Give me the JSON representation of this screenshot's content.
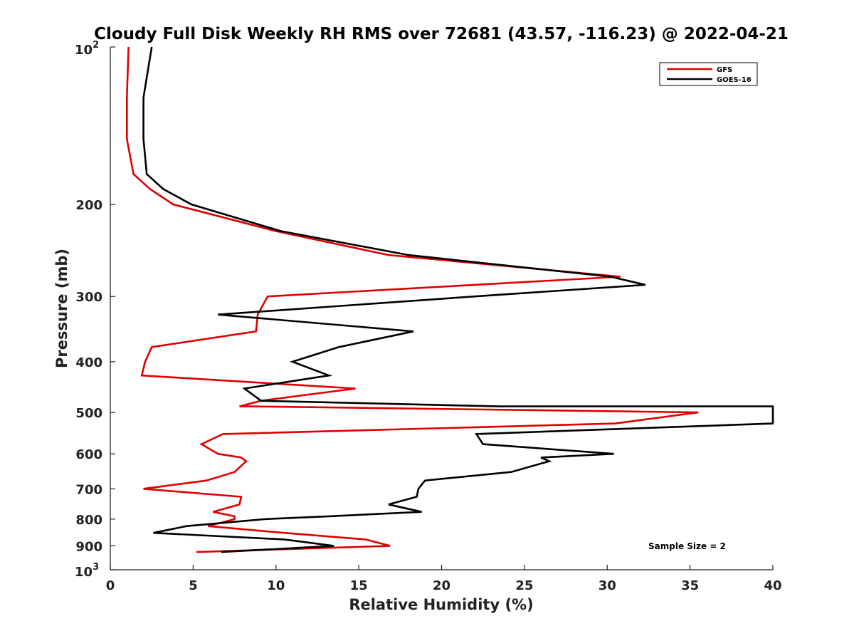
{
  "chart_data": {
    "type": "line",
    "title": "Cloudy Full Disk Weekly RH RMS over 72681 (43.57, -116.23) @ 2022-04-21",
    "xlabel": "Relative Humidity (%)",
    "ylabel": "Pressure (mb)",
    "xlim": [
      0,
      40
    ],
    "ylim": [
      100,
      1000
    ],
    "yscale": "log",
    "y_reversed": true,
    "grid": false,
    "legend_position": "top-right",
    "x_ticks": [
      "0",
      "5",
      "10",
      "15",
      "20",
      "25",
      "30",
      "35",
      "40"
    ],
    "x_tick_values": [
      0,
      5,
      10,
      15,
      20,
      25,
      30,
      35,
      40
    ],
    "y_ticks": [
      "200",
      "300",
      "400",
      "500",
      "600",
      "700",
      "800",
      "900"
    ],
    "y_tick_values": [
      200,
      300,
      400,
      500,
      600,
      700,
      800,
      900
    ],
    "y_tick_top": {
      "base": "10",
      "exp": "2"
    },
    "y_tick_bottom": {
      "base": "10",
      "exp": "3"
    },
    "annotation": "Sample Size = 2",
    "series": [
      {
        "name": "GFS",
        "color": "#e00000",
        "points": [
          [
            1.1,
            100
          ],
          [
            1.0,
            125
          ],
          [
            1.0,
            150
          ],
          [
            1.4,
            175
          ],
          [
            2.4,
            187
          ],
          [
            3.8,
            200
          ],
          [
            10.0,
            225
          ],
          [
            16.8,
            250
          ],
          [
            30.8,
            275
          ],
          [
            22.0,
            285
          ],
          [
            9.5,
            300
          ],
          [
            8.9,
            325
          ],
          [
            8.8,
            350
          ],
          [
            2.5,
            375
          ],
          [
            2.1,
            400
          ],
          [
            1.9,
            425
          ],
          [
            14.8,
            450
          ],
          [
            9.1,
            475
          ],
          [
            7.8,
            487
          ],
          [
            8.5,
            487
          ],
          [
            35.5,
            500
          ],
          [
            30.5,
            525
          ],
          [
            6.8,
            550
          ],
          [
            5.5,
            575
          ],
          [
            6.5,
            600
          ],
          [
            7.9,
            610
          ],
          [
            8.2,
            620
          ],
          [
            7.5,
            650
          ],
          [
            5.8,
            675
          ],
          [
            2.0,
            700
          ],
          [
            7.9,
            725
          ],
          [
            7.8,
            750
          ],
          [
            6.2,
            775
          ],
          [
            7.5,
            790
          ],
          [
            7.5,
            800
          ],
          [
            5.9,
            825
          ],
          [
            10.5,
            850
          ],
          [
            15.4,
            875
          ],
          [
            16.9,
            900
          ],
          [
            5.2,
            925
          ]
        ]
      },
      {
        "name": "GOES-16",
        "color": "#000000",
        "points": [
          [
            2.5,
            100
          ],
          [
            2.0,
            125
          ],
          [
            2.0,
            150
          ],
          [
            2.2,
            175
          ],
          [
            3.2,
            187
          ],
          [
            4.9,
            200
          ],
          [
            10.3,
            225
          ],
          [
            18.0,
            250
          ],
          [
            30.2,
            275
          ],
          [
            32.3,
            285
          ],
          [
            22.0,
            300
          ],
          [
            6.5,
            325
          ],
          [
            18.3,
            350
          ],
          [
            13.8,
            375
          ],
          [
            11.0,
            400
          ],
          [
            13.2,
            425
          ],
          [
            8.1,
            450
          ],
          [
            9.1,
            475
          ],
          [
            23.5,
            487
          ],
          [
            40.0,
            487
          ],
          [
            40.0,
            500
          ],
          [
            40.0,
            525
          ],
          [
            22.1,
            550
          ],
          [
            22.5,
            575
          ],
          [
            30.4,
            600
          ],
          [
            26.0,
            610
          ],
          [
            26.5,
            620
          ],
          [
            24.2,
            650
          ],
          [
            19.0,
            675
          ],
          [
            18.6,
            700
          ],
          [
            18.5,
            725
          ],
          [
            16.8,
            750
          ],
          [
            18.8,
            775
          ],
          [
            13.2,
            790
          ],
          [
            9.3,
            800
          ],
          [
            4.6,
            825
          ],
          [
            2.6,
            850
          ],
          [
            10.5,
            875
          ],
          [
            13.5,
            900
          ],
          [
            6.7,
            925
          ]
        ]
      }
    ]
  }
}
